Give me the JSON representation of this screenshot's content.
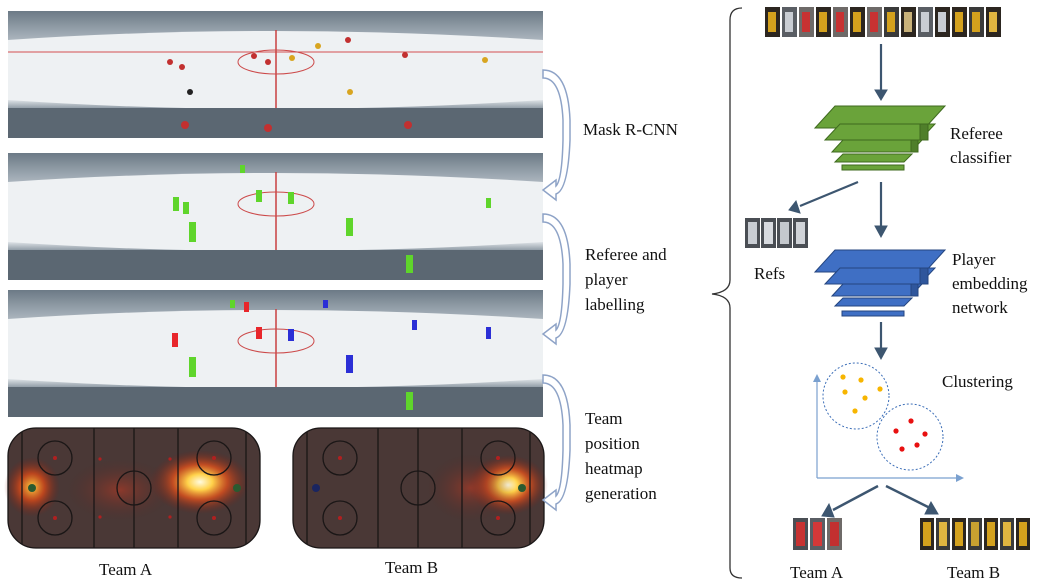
{
  "pipeline": {
    "steps": [
      {
        "label": "Mask R-CNN"
      },
      {
        "label_lines": [
          "Referee and",
          "player",
          "labelling"
        ]
      },
      {
        "label_lines": [
          "Team",
          "position",
          "heatmap",
          "generation"
        ]
      }
    ],
    "heatmaps": [
      {
        "caption": "Team A"
      },
      {
        "caption": "Team B"
      }
    ]
  },
  "classifier": {
    "referee_classifier_lines": [
      "Referee",
      "classifier"
    ],
    "refs_label": "Refs",
    "embedding_lines": [
      "Player",
      "embedding",
      "network"
    ],
    "clustering_label": "Clustering",
    "team_a_label": "Team A",
    "team_b_label": "Team B"
  },
  "colors": {
    "team_a_mask": "#e8262b",
    "team_b_mask": "#2b2fd6",
    "player_mask": "#5fd52b",
    "referee_net": "#6aa33a",
    "embedding_net": "#3f6fc4",
    "cluster_a": "#f7b500",
    "cluster_b": "#e81010",
    "arrow": "#3d5670",
    "bracket_arrow": "#8ea3c7"
  }
}
